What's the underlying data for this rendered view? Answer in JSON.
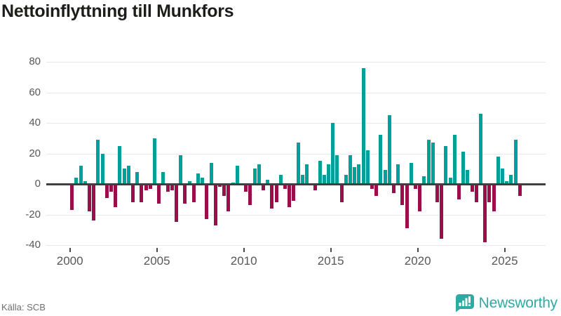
{
  "title": "Nettoinflyttning till Munkfors",
  "source": {
    "text": "Källa: SCB"
  },
  "footer": {
    "brand": "Newsworthy"
  },
  "colors": {
    "positive": "#00a09a",
    "negative": "#9b0e4b",
    "brand": "#2fa9a4",
    "title_text": "#1d1d1b",
    "axis_text": "#575757",
    "gridline": "#e8e8e8",
    "zero_line": "#3f3f3f"
  },
  "chart_data": {
    "type": "bar",
    "title": "Nettoinflyttning till Munkfors",
    "x_start": "2000-Q1",
    "x_end": "2025-Q4",
    "frequency": "quarterly",
    "values": [
      -17,
      4,
      12,
      2,
      -18,
      -24,
      29,
      20,
      -9,
      -5,
      -15,
      25,
      10,
      12,
      -12,
      8,
      -12,
      -4,
      -3,
      30,
      -13,
      8,
      -5,
      -4,
      -25,
      19,
      -13,
      2,
      -12,
      7,
      4,
      -23,
      14,
      -27,
      -2,
      -8,
      -18,
      1,
      12,
      0,
      -5,
      -14,
      10,
      13,
      -4,
      3,
      -16,
      -12,
      6,
      -3,
      -15,
      -11,
      27,
      6,
      13,
      0,
      -4,
      15,
      6,
      13,
      40,
      19,
      -12,
      6,
      19,
      11,
      13,
      76,
      22,
      -3,
      -8,
      32,
      9,
      45,
      -6,
      13,
      -14,
      -29,
      14,
      -3,
      -18,
      5,
      29,
      27,
      -12,
      -36,
      25,
      4,
      32,
      -10,
      21,
      9,
      -5,
      -12,
      46,
      -38,
      -12,
      -18,
      18,
      10,
      2,
      6,
      29,
      -8
    ],
    "x_ticks": [
      2000,
      2005,
      2010,
      2015,
      2020,
      2025
    ],
    "y_ticks": [
      80,
      60,
      40,
      20,
      0,
      -20,
      -40
    ],
    "ylim": [
      -42,
      84
    ],
    "grid": "horizontal",
    "legend": "none",
    "xlabel": "",
    "ylabel": ""
  }
}
